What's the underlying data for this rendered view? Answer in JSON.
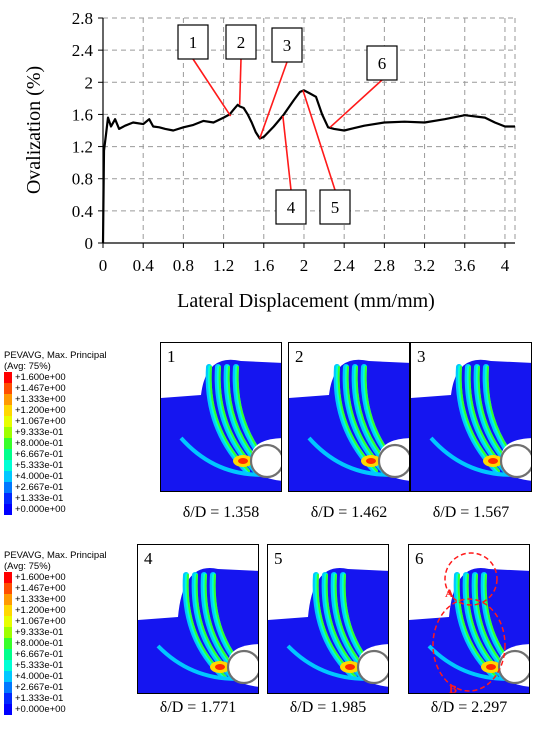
{
  "chart_data": {
    "type": "line",
    "xlabel": "Lateral Displacement (mm/mm)",
    "ylabel": "Ovalization (%)",
    "xlim": [
      0,
      4.1
    ],
    "ylim": [
      0,
      2.8
    ],
    "xticks": [
      "0",
      "0.4",
      "0.8",
      "1.2",
      "1.6",
      "2",
      "2.4",
      "2.8",
      "3.2",
      "3.6",
      "4"
    ],
    "yticks": [
      "0",
      "0.4",
      "0.8",
      "1.2",
      "1.6",
      "2",
      "2.4",
      "2.8"
    ],
    "grid": "dashed",
    "series": [
      {
        "x": [
          0,
          0.01,
          0.03,
          0.05,
          0.08,
          0.12,
          0.16,
          0.22,
          0.3,
          0.4,
          0.46,
          0.5,
          0.56,
          0.62,
          0.7,
          0.8,
          0.9,
          1.0,
          1.1,
          1.2,
          1.26,
          1.3,
          1.34,
          1.36,
          1.4,
          1.44,
          1.48,
          1.52,
          1.56,
          1.6,
          1.7,
          1.8,
          1.9,
          1.96,
          2.0,
          2.06,
          2.12,
          2.18,
          2.24,
          2.3,
          2.4,
          2.5,
          2.6,
          2.8,
          3.0,
          3.2,
          3.4,
          3.6,
          3.8,
          3.9,
          4.0,
          4.1
        ],
        "y": [
          0,
          1.15,
          1.35,
          1.56,
          1.45,
          1.54,
          1.42,
          1.46,
          1.5,
          1.48,
          1.54,
          1.45,
          1.44,
          1.42,
          1.4,
          1.44,
          1.47,
          1.52,
          1.5,
          1.56,
          1.6,
          1.66,
          1.72,
          1.7,
          1.68,
          1.6,
          1.5,
          1.38,
          1.3,
          1.32,
          1.45,
          1.6,
          1.78,
          1.88,
          1.9,
          1.86,
          1.82,
          1.6,
          1.44,
          1.42,
          1.4,
          1.43,
          1.46,
          1.5,
          1.51,
          1.5,
          1.54,
          1.59,
          1.56,
          1.5,
          1.45,
          1.45
        ]
      }
    ],
    "annotations": [
      {
        "label": "1",
        "x": 1.27,
        "y": 1.58
      },
      {
        "label": "2",
        "x": 1.36,
        "y": 1.72
      },
      {
        "label": "3",
        "x": 1.56,
        "y": 1.3
      },
      {
        "label": "4",
        "x": 1.79,
        "y": 1.58
      },
      {
        "label": "5",
        "x": 1.99,
        "y": 1.9
      },
      {
        "label": "6",
        "x": 2.26,
        "y": 1.44
      }
    ]
  },
  "legends": [
    {
      "title": "PEVAVG, Max. Principal\n(Avg: 75%)",
      "entries": [
        {
          "label": "+1.600e+00",
          "color": "#ff0000"
        },
        {
          "label": "+1.467e+00",
          "color": "#ff4e00"
        },
        {
          "label": "+1.333e+00",
          "color": "#ff9a00"
        },
        {
          "label": "+1.200e+00",
          "color": "#ffd800"
        },
        {
          "label": "+1.067e+00",
          "color": "#e7ff00"
        },
        {
          "label": "+9.333e-01",
          "color": "#9fff00"
        },
        {
          "label": "+8.000e-01",
          "color": "#36ff2a"
        },
        {
          "label": "+6.667e-01",
          "color": "#00ff8c"
        },
        {
          "label": "+5.333e-01",
          "color": "#00ffd5"
        },
        {
          "label": "+4.000e-01",
          "color": "#00c8ff"
        },
        {
          "label": "+2.667e-01",
          "color": "#0078ff"
        },
        {
          "label": "+1.333e-01",
          "color": "#0028ff"
        },
        {
          "label": "+0.000e+00",
          "color": "#0000ff"
        }
      ]
    },
    {
      "title": "PEVAVG, Max. Principal\n(Avg: 75%)",
      "entries": [
        {
          "label": "+1.600e+00",
          "color": "#ff0000"
        },
        {
          "label": "+1.467e+00",
          "color": "#ff4e00"
        },
        {
          "label": "+1.333e+00",
          "color": "#ff9a00"
        },
        {
          "label": "+1.200e+00",
          "color": "#ffd800"
        },
        {
          "label": "+1.067e+00",
          "color": "#e7ff00"
        },
        {
          "label": "+9.333e-01",
          "color": "#9fff00"
        },
        {
          "label": "+8.000e-01",
          "color": "#36ff2a"
        },
        {
          "label": "+6.667e-01",
          "color": "#00ff8c"
        },
        {
          "label": "+5.333e-01",
          "color": "#00ffd5"
        },
        {
          "label": "+4.000e-01",
          "color": "#00c8ff"
        },
        {
          "label": "+2.667e-01",
          "color": "#0078ff"
        },
        {
          "label": "+1.333e-01",
          "color": "#0028ff"
        },
        {
          "label": "+0.000e+00",
          "color": "#0000ff"
        }
      ]
    }
  ],
  "panels": [
    {
      "number": "1",
      "caption": "δ/D = 1.358"
    },
    {
      "number": "2",
      "caption": "δ/D = 1.462"
    },
    {
      "number": "3",
      "caption": "δ/D = 1.567"
    },
    {
      "number": "4",
      "caption": "δ/D = 1.771"
    },
    {
      "number": "5",
      "caption": "δ/D = 1.985"
    },
    {
      "number": "6",
      "caption": "δ/D = 2.297",
      "markers": [
        "A",
        "B"
      ]
    }
  ]
}
